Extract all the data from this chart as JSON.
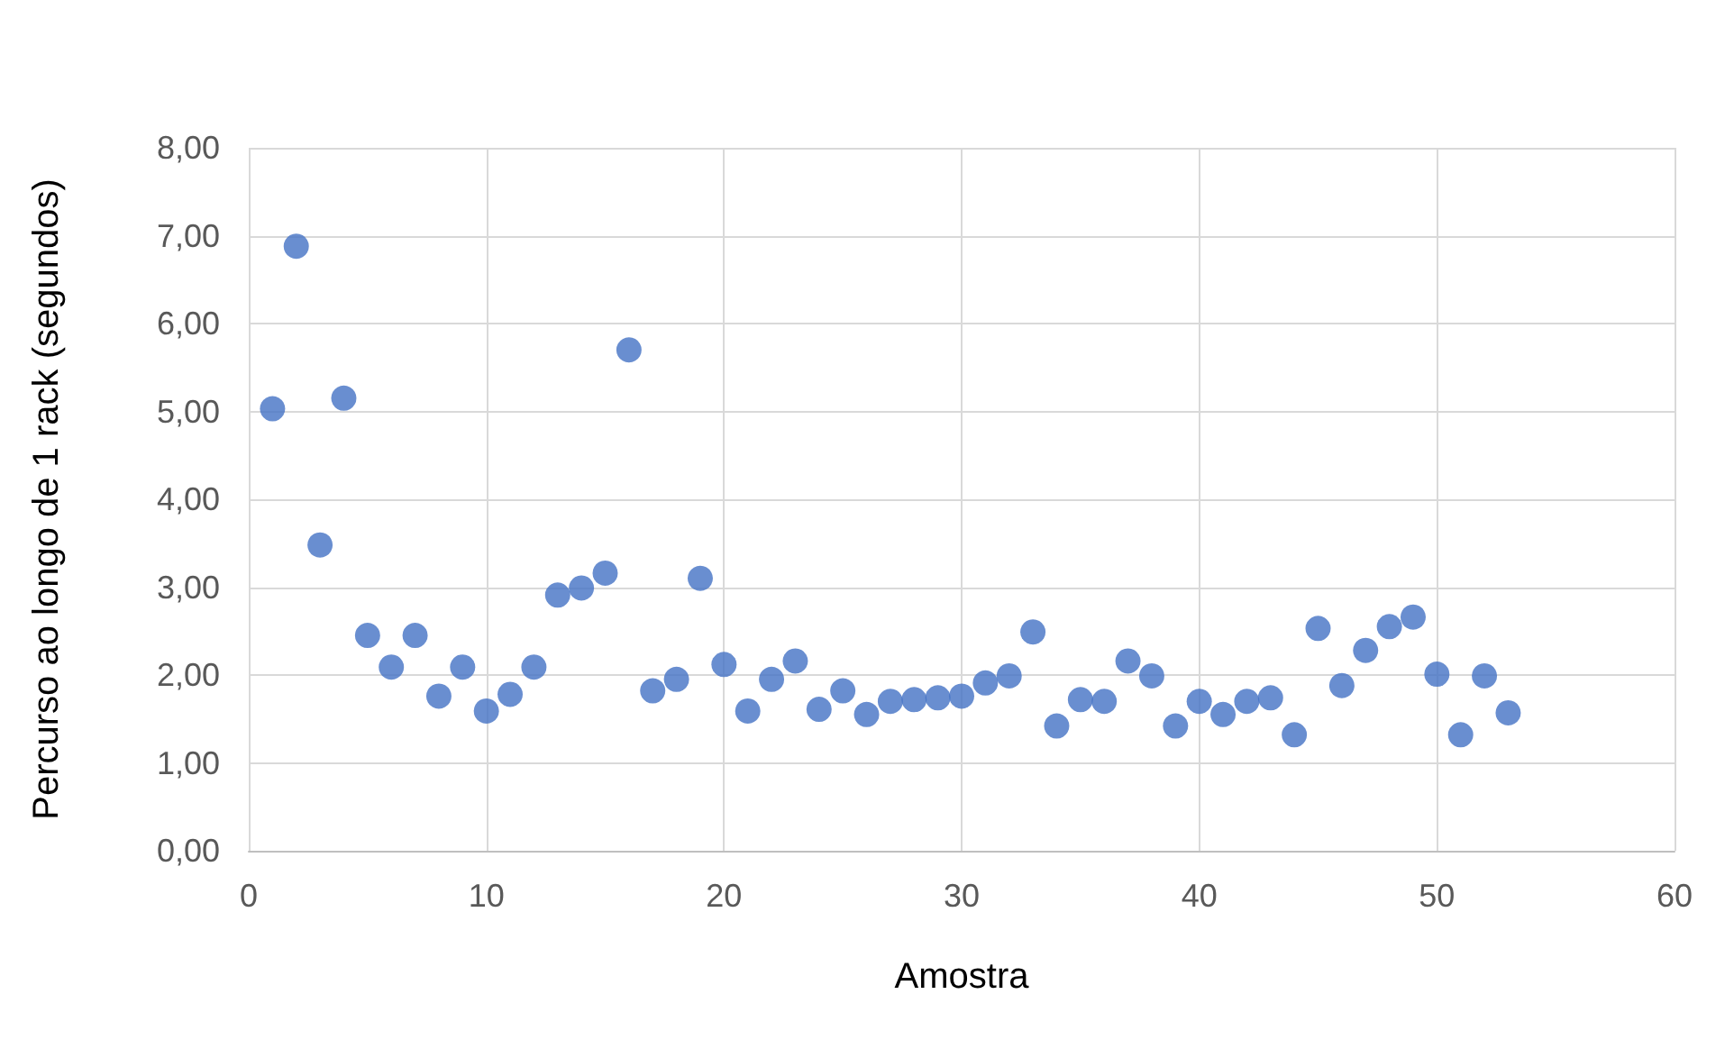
{
  "chart_data": {
    "type": "scatter",
    "xlabel": "Amostra",
    "ylabel": "Percurso ao longo de 1 rack (segundos)",
    "x": [
      1,
      2,
      3,
      4,
      5,
      6,
      7,
      8,
      9,
      10,
      11,
      12,
      13,
      14,
      15,
      16,
      17,
      18,
      19,
      20,
      21,
      22,
      23,
      24,
      25,
      26,
      27,
      28,
      29,
      30,
      31,
      32,
      33,
      34,
      35,
      36,
      37,
      38,
      39,
      40,
      41,
      42,
      43,
      44,
      45,
      46,
      47,
      48,
      49,
      50,
      51,
      52,
      53
    ],
    "series": [
      {
        "color": "#4472c4",
        "values": [
          5.03,
          6.88,
          3.48,
          5.15,
          2.45,
          2.09,
          2.45,
          1.76,
          2.09,
          1.59,
          1.78,
          2.09,
          2.91,
          2.99,
          3.16,
          5.7,
          1.82,
          1.95,
          3.1,
          2.12,
          1.59,
          1.95,
          2.16,
          1.61,
          1.82,
          1.55,
          1.7,
          1.72,
          1.74,
          1.76,
          1.91,
          1.99,
          2.49,
          1.42,
          1.72,
          1.7,
          2.16,
          1.99,
          1.42,
          1.7,
          1.55,
          1.7,
          1.74,
          1.32,
          2.53,
          1.88,
          2.28,
          2.55,
          2.66,
          2.01,
          1.32,
          1.99,
          1.57
        ]
      }
    ],
    "xlim": [
      0,
      60
    ],
    "xticks": [
      0,
      10,
      20,
      30,
      40,
      50,
      60
    ],
    "ylim": [
      0,
      8
    ],
    "yticks": [
      {
        "value": 0,
        "label": "0,00"
      },
      {
        "value": 1,
        "label": "1,00"
      },
      {
        "value": 2,
        "label": "2,00"
      },
      {
        "value": 3,
        "label": "3,00"
      },
      {
        "value": 4,
        "label": "4,00"
      },
      {
        "value": 5,
        "label": "5,00"
      },
      {
        "value": 6,
        "label": "6,00"
      },
      {
        "value": 7,
        "label": "7,00"
      },
      {
        "value": 8,
        "label": "8,00"
      }
    ],
    "grid": true,
    "marker": "circle"
  }
}
